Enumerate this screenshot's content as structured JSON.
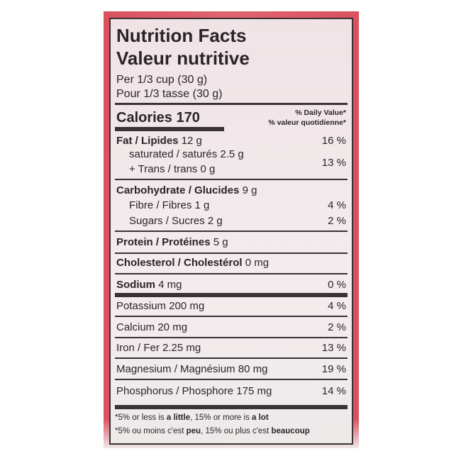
{
  "title_en": "Nutrition Facts",
  "title_fr": "Valeur nutritive",
  "serving_en": "Per 1/3 cup (30 g)",
  "serving_fr": "Pour 1/3 tasse (30 g)",
  "calories_label": "Calories 170",
  "dv_en": "% Daily Value*",
  "dv_fr": "% valeur quotidienne*",
  "fat": {
    "name": "Fat / Lipides",
    "amount": "12 g",
    "dv": "16 %"
  },
  "saturated": "saturated / saturés 2.5 g",
  "trans": "+ Trans / trans 0 g",
  "sat_trans_dv": "13 %",
  "carb": {
    "name": "Carbohydrate / Glucides",
    "amount": "9 g"
  },
  "fibre": {
    "name": "Fibre / Fibres 1 g",
    "dv": "4 %"
  },
  "sugars": {
    "name": "Sugars / Sucres 2 g",
    "dv": "2 %"
  },
  "protein": {
    "name": "Protein / Protéines",
    "amount": "5 g"
  },
  "cholesterol": {
    "name": "Cholesterol / Cholestérol",
    "amount": "0 mg"
  },
  "sodium": {
    "name": "Sodium",
    "amount": "4 mg",
    "dv": "0 %"
  },
  "potassium": {
    "name": "Potassium 200 mg",
    "dv": "4 %"
  },
  "calcium": {
    "name": "Calcium 20 mg",
    "dv": "2 %"
  },
  "iron": {
    "name": "Iron / Fer 2.25 mg",
    "dv": "13 %"
  },
  "magnesium": {
    "name": "Magnesium / Magnésium 80 mg",
    "dv": "19 %"
  },
  "phosphorus": {
    "name": "Phosphorus / Phosphore 175 mg",
    "dv": "14 %"
  },
  "footnote_en": {
    "a": "*5% or less is ",
    "b": "a little",
    "c": ", 15% or more is ",
    "d": "a lot"
  },
  "footnote_fr": {
    "a": "*5% ou moins c'est ",
    "b": "peu",
    "c": ", 15% ou plus c'est ",
    "d": "beaucoup"
  }
}
